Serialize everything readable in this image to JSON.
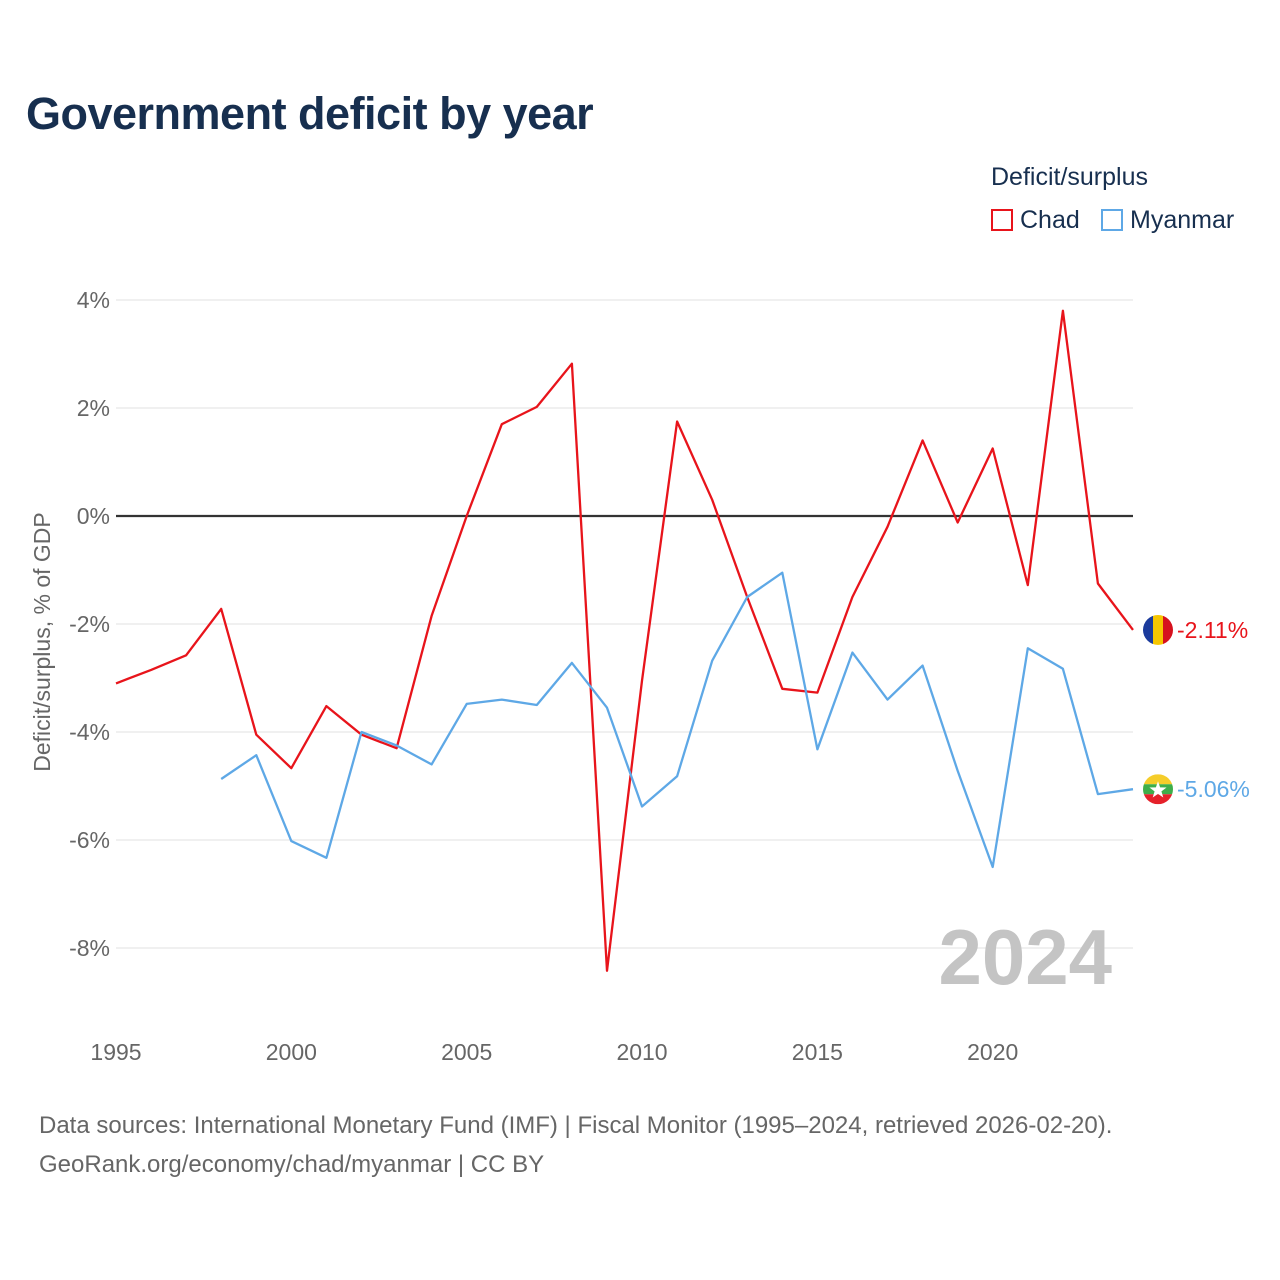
{
  "title": "Government deficit by year",
  "legend": {
    "title": "Deficit/surplus",
    "items": [
      {
        "label": "Chad",
        "color": "#e8141b"
      },
      {
        "label": "Myanmar",
        "color": "#5ea8e6"
      }
    ]
  },
  "watermark_year": "2024",
  "sources": {
    "line1": "Data sources: International Monetary Fund (IMF) | Fiscal Monitor (1995–2024, retrieved 2026-02-20).",
    "line2": "GeoRank.org/economy/chad/myanmar | CC BY"
  },
  "chart_data": {
    "type": "line",
    "title": "Government deficit by year",
    "xlabel": "",
    "ylabel": "Deficit/surplus, % of GDP",
    "xlim": [
      1995,
      2024
    ],
    "ylim": [
      -9.2,
      4.3
    ],
    "x_ticks": [
      1995,
      2000,
      2005,
      2010,
      2015,
      2020
    ],
    "y_ticks": [
      4,
      2,
      0,
      -2,
      -4,
      -6,
      -8
    ],
    "y_tick_labels": [
      "4%",
      "2%",
      "0%",
      "-2%",
      "-4%",
      "-6%",
      "-8%"
    ],
    "grid": true,
    "legend_position": "top-right",
    "series": [
      {
        "name": "Chad",
        "color": "#e8141b",
        "end_label": "-2.11%",
        "points": [
          [
            1995,
            -3.1
          ],
          [
            1996,
            -2.85
          ],
          [
            1997,
            -2.58
          ],
          [
            1998,
            -1.72
          ],
          [
            1999,
            -4.05
          ],
          [
            2000,
            -4.67
          ],
          [
            2001,
            -3.52
          ],
          [
            2002,
            -4.05
          ],
          [
            2003,
            -4.3
          ],
          [
            2004,
            -1.85
          ],
          [
            2005,
            0.0
          ],
          [
            2006,
            1.7
          ],
          [
            2007,
            2.02
          ],
          [
            2008,
            2.82
          ],
          [
            2009,
            -8.42
          ],
          [
            2010,
            -3.05
          ],
          [
            2011,
            1.75
          ],
          [
            2012,
            0.3
          ],
          [
            2013,
            -1.5
          ],
          [
            2014,
            -3.2
          ],
          [
            2015,
            -3.27
          ],
          [
            2016,
            -1.5
          ],
          [
            2017,
            -0.2
          ],
          [
            2018,
            1.4
          ],
          [
            2019,
            -0.12
          ],
          [
            2020,
            1.25
          ],
          [
            2021,
            -1.28
          ],
          [
            2022,
            3.8
          ],
          [
            2023,
            -1.25
          ],
          [
            2024,
            -2.11
          ]
        ]
      },
      {
        "name": "Myanmar",
        "color": "#5ea8e6",
        "end_label": "-5.06%",
        "points": [
          [
            1998,
            -4.87
          ],
          [
            1999,
            -4.43
          ],
          [
            2000,
            -6.02
          ],
          [
            2001,
            -6.33
          ],
          [
            2002,
            -4.0
          ],
          [
            2003,
            -4.25
          ],
          [
            2004,
            -4.6
          ],
          [
            2005,
            -3.48
          ],
          [
            2006,
            -3.4
          ],
          [
            2007,
            -3.5
          ],
          [
            2008,
            -2.72
          ],
          [
            2009,
            -3.55
          ],
          [
            2010,
            -5.38
          ],
          [
            2011,
            -4.82
          ],
          [
            2012,
            -2.68
          ],
          [
            2013,
            -1.5
          ],
          [
            2014,
            -1.05
          ],
          [
            2015,
            -4.32
          ],
          [
            2016,
            -2.53
          ],
          [
            2017,
            -3.4
          ],
          [
            2018,
            -2.77
          ],
          [
            2019,
            -4.72
          ],
          [
            2020,
            -6.5
          ],
          [
            2021,
            -2.45
          ],
          [
            2022,
            -2.83
          ],
          [
            2023,
            -5.15
          ],
          [
            2024,
            -5.06
          ]
        ]
      }
    ]
  }
}
